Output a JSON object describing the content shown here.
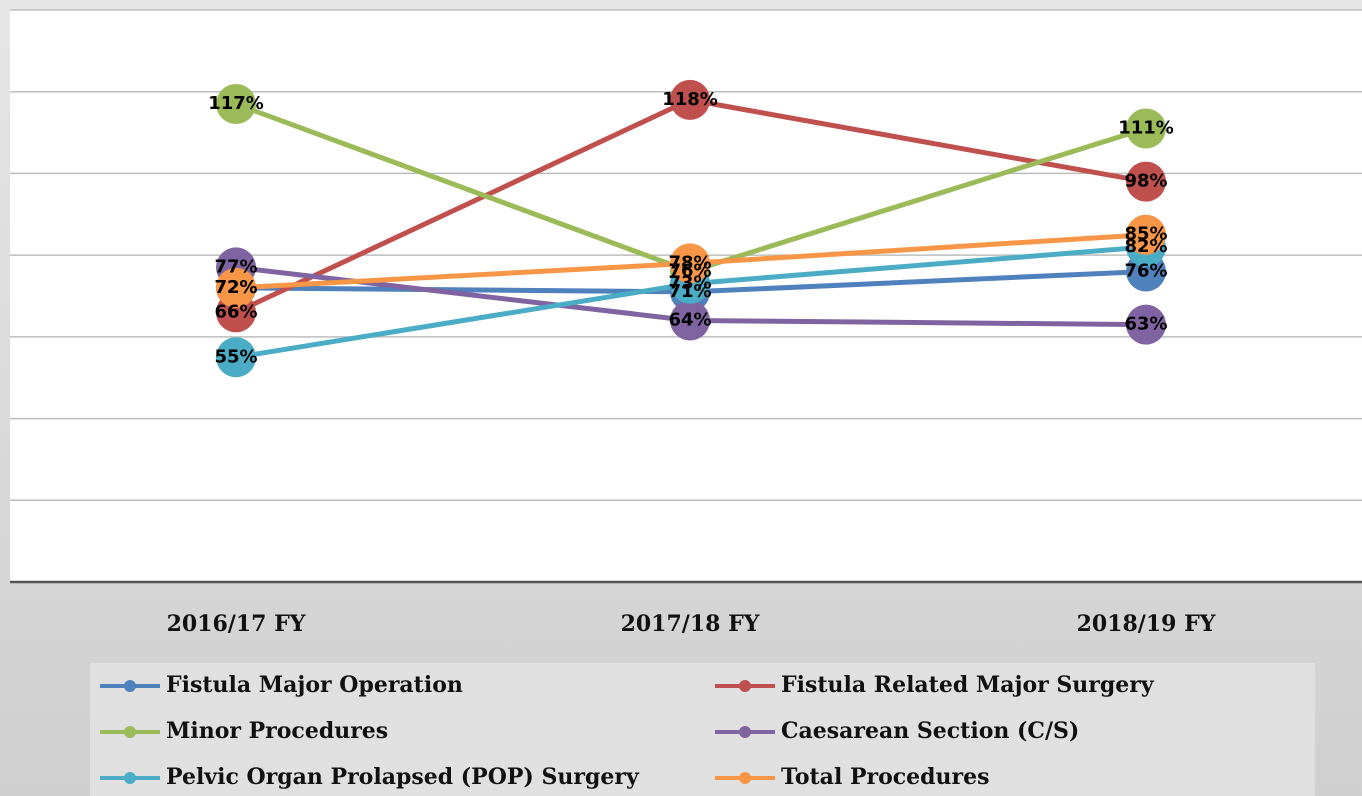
{
  "chart_data": {
    "type": "line",
    "categories": [
      "2016/17 FY",
      "2017/18 FY",
      "2018/19 FY"
    ],
    "series": [
      {
        "name": "Fistula Major Operation",
        "color": "#4f81bd",
        "values": [
          72,
          71,
          76
        ],
        "value_labels": [
          "72%",
          "71%",
          "76%"
        ]
      },
      {
        "name": "Fistula Related Major Surgery",
        "color": "#c0504d",
        "values": [
          66,
          118,
          98
        ],
        "value_labels": [
          "66%",
          "118%",
          "98%"
        ]
      },
      {
        "name": "Minor Procedures",
        "color": "#9bbb59",
        "values": [
          117,
          76,
          111
        ],
        "value_labels": [
          "117%",
          "76%",
          "111%"
        ]
      },
      {
        "name": "Caesarean Section (C/S)",
        "color": "#8064a2",
        "values": [
          77,
          64,
          63
        ],
        "value_labels": [
          "77%",
          "64%",
          "63%"
        ]
      },
      {
        "name": "Pelvic Organ Prolapsed (POP) Surgery",
        "color": "#4bacc6",
        "values": [
          55,
          73,
          82
        ],
        "value_labels": [
          "55%",
          "73%",
          "82%"
        ]
      },
      {
        "name": "Total Procedures",
        "color": "#f79646",
        "values": [
          72,
          78,
          85
        ],
        "value_labels": [
          "72%",
          "78%",
          "85%"
        ]
      }
    ],
    "ylim": [
      0,
      140
    ],
    "yticks": [
      0,
      20,
      40,
      60,
      80,
      100,
      120,
      140
    ],
    "grid": true
  }
}
